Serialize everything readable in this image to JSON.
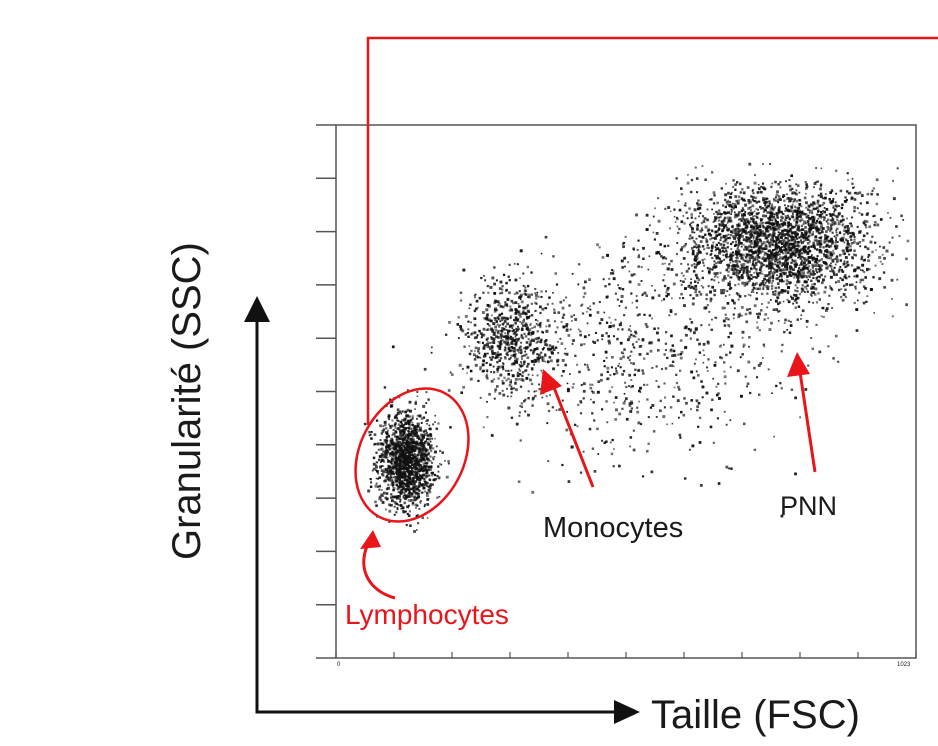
{
  "chart_data": {
    "type": "scatter",
    "title": "",
    "xlabel": "Taille (FSC)",
    "ylabel": "Granularité (SSC)",
    "xlim": [
      0,
      1000
    ],
    "ylim": [
      0,
      1000
    ],
    "x_tick_labels": [
      "0",
      "1023"
    ],
    "grid": false,
    "legend": "none",
    "populations": [
      {
        "name": "Lymphocytes",
        "center": [
          120,
          375
        ],
        "spread": [
          50,
          90
        ],
        "count": 1400,
        "gated": true
      },
      {
        "name": "Monocytes",
        "center": [
          300,
          600
        ],
        "spread": [
          80,
          110
        ],
        "count": 650
      },
      {
        "name": "PNN",
        "center": [
          760,
          780
        ],
        "spread": [
          170,
          110
        ],
        "count": 2600
      },
      {
        "name": "",
        "center": [
          520,
          580
        ],
        "spread": [
          260,
          200
        ],
        "count": 700
      }
    ]
  },
  "annotations": {
    "lymphocytes": "Lymphocytes",
    "monocytes": "Monocytes",
    "pnn": "PNN"
  },
  "colors": {
    "gate": "#e8151b",
    "points": "#111111",
    "frame": "#555555",
    "text": "#1a1a1a"
  }
}
